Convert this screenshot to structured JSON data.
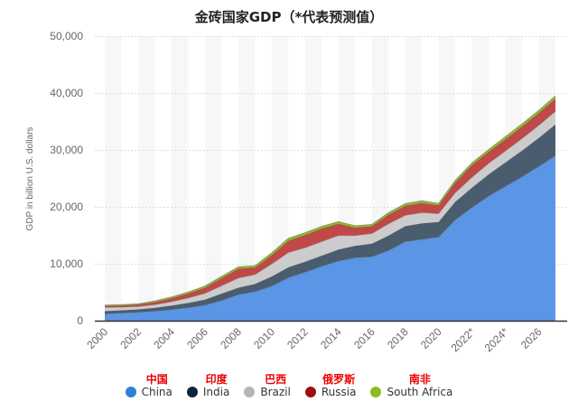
{
  "chart_data": {
    "type": "area",
    "stacked": true,
    "title": "金砖国家GDP（*代表预测值）",
    "ylabel": "GDP in billion U.S. dollars",
    "xlabel": "",
    "ylim": [
      0,
      50000
    ],
    "yticks": [
      "0",
      "10,000",
      "20,000",
      "30,000",
      "40,000",
      "50,000"
    ],
    "ytick_values": [
      0,
      10000,
      20000,
      30000,
      40000,
      50000
    ],
    "xticks": [
      "2000",
      "2002",
      "2004",
      "2006",
      "2008",
      "2010",
      "2012",
      "2014",
      "2016",
      "2018",
      "2020",
      "2022*",
      "2024*",
      "2026"
    ],
    "grid": true,
    "legend_position": "bottom",
    "x": [
      2000,
      2001,
      2002,
      2003,
      2004,
      2005,
      2006,
      2007,
      2008,
      2009,
      2010,
      2011,
      2012,
      2013,
      2014,
      2015,
      2016,
      2017,
      2018,
      2019,
      2020,
      2021,
      2022,
      2023,
      2024,
      2025,
      2026,
      2027
    ],
    "series": [
      {
        "name": "China",
        "label_cn": "中国",
        "color": "#5b95e5",
        "legend_color": "#2f7ed8",
        "values": [
          1211,
          1339,
          1471,
          1660,
          1955,
          2286,
          2752,
          3550,
          4594,
          5102,
          6087,
          7552,
          8532,
          9570,
          10476,
          11062,
          11233,
          12310,
          13895,
          14280,
          14688,
          17734,
          19900,
          21900,
          23600,
          25300,
          27100,
          29000
        ]
      },
      {
        "name": "India",
        "label_cn": "印度",
        "color": "#4a5d6e",
        "legend_color": "#0d233a",
        "values": [
          468,
          485,
          515,
          608,
          709,
          820,
          940,
          1217,
          1199,
          1342,
          1676,
          1823,
          1828,
          1857,
          2039,
          2104,
          2295,
          2651,
          2703,
          2836,
          2668,
          3150,
          3470,
          3820,
          4200,
          4590,
          5000,
          5500
        ]
      },
      {
        "name": "Brazil",
        "label_cn": "巴西",
        "color": "#cccccc",
        "legend_color": "#b5b5b5",
        "values": [
          655,
          559,
          509,
          558,
          669,
          892,
          1108,
          1397,
          1696,
          1667,
          2209,
          2616,
          2465,
          2473,
          2456,
          1802,
          1796,
          2063,
          1917,
          1878,
          1448,
          1609,
          1830,
          1940,
          2030,
          2120,
          2210,
          2300
        ]
      },
      {
        "name": "Russia",
        "label_cn": "俄罗斯",
        "color": "#c04848",
        "legend_color": "#a00e0e",
        "values": [
          260,
          307,
          345,
          430,
          591,
          764,
          990,
          1300,
          1661,
          1223,
          1525,
          2046,
          2208,
          2292,
          2059,
          1363,
          1277,
          1574,
          1657,
          1693,
          1483,
          1776,
          2130,
          2000,
          2050,
          2100,
          2150,
          2200
        ]
      },
      {
        "name": "South Africa",
        "label_cn": "南非",
        "color": "#8bbc21",
        "legend_color": "#8bbc21",
        "values": [
          151,
          135,
          129,
          197,
          256,
          288,
          304,
          334,
          317,
          330,
          417,
          458,
          434,
          400,
          381,
          347,
          323,
          381,
          405,
          389,
          338,
          420,
          420,
          430,
          450,
          470,
          490,
          510
        ]
      }
    ]
  }
}
